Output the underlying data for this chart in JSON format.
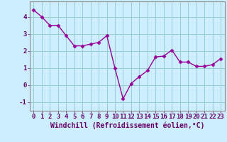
{
  "x": [
    0,
    1,
    2,
    3,
    4,
    5,
    6,
    7,
    8,
    9,
    10,
    11,
    12,
    13,
    14,
    15,
    16,
    17,
    18,
    19,
    20,
    21,
    22,
    23
  ],
  "y": [
    4.4,
    4.0,
    3.5,
    3.5,
    2.9,
    2.3,
    2.3,
    2.4,
    2.5,
    2.9,
    1.0,
    -0.8,
    0.1,
    0.5,
    0.85,
    1.65,
    1.7,
    2.05,
    1.35,
    1.35,
    1.1,
    1.1,
    1.2,
    1.55
  ],
  "line_color": "#990099",
  "marker": "D",
  "marker_size": 2.5,
  "bg_color": "#cceeff",
  "grid_color": "#99cccc",
  "xlabel": "Windchill (Refroidissement éolien,°C)",
  "xlabel_fontsize": 7,
  "xtick_labels": [
    "0",
    "1",
    "2",
    "3",
    "4",
    "5",
    "6",
    "7",
    "8",
    "9",
    "10",
    "11",
    "12",
    "13",
    "14",
    "15",
    "16",
    "17",
    "18",
    "19",
    "20",
    "21",
    "22",
    "23"
  ],
  "ylim": [
    -1.5,
    4.9
  ],
  "yticks": [
    -1,
    0,
    1,
    2,
    3,
    4
  ],
  "xlim": [
    -0.5,
    23.5
  ],
  "tick_fontsize": 6.5,
  "axis_label_color": "#660066",
  "tick_color": "#660066",
  "spine_color": "#888888",
  "line_width": 1.0
}
